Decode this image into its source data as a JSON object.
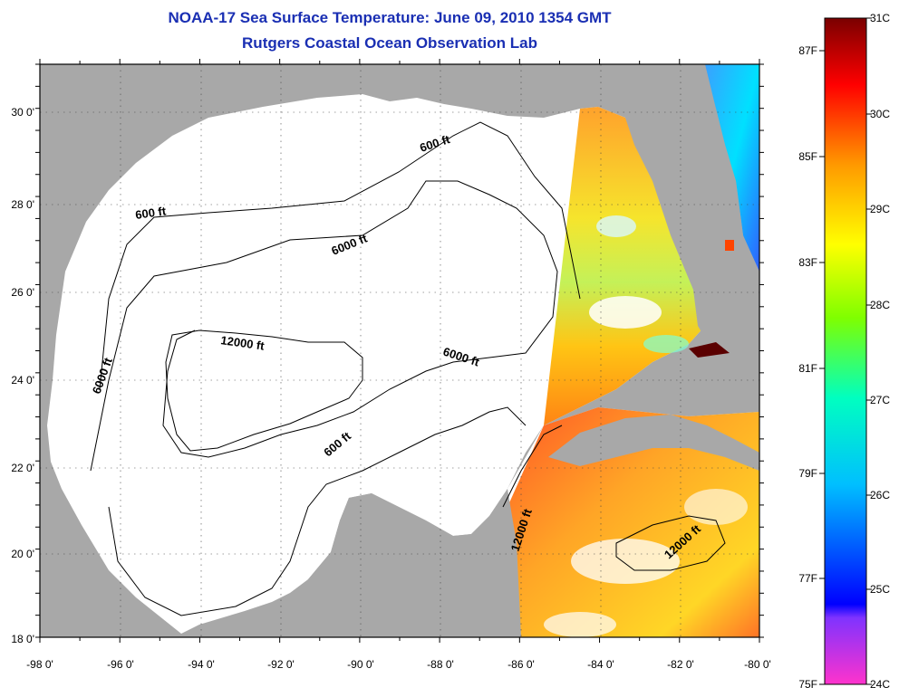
{
  "title": "NOAA-17 Sea Surface Temperature:  June 09, 2010 1354 GMT",
  "subtitle": "Rutgers Coastal Ocean Observation Lab",
  "axes": {
    "x_ticks": [
      "-98 0'",
      "-96 0'",
      "-94 0'",
      "-92 0'",
      "-90 0'",
      "-88 0'",
      "-86 0'",
      "-84 0'",
      "-82 0'",
      "-80 0'"
    ],
    "y_ticks": [
      "30 0'",
      "28 0'",
      "26 0'",
      "24 0'",
      "22 0'",
      "20 0'",
      "18 0'"
    ]
  },
  "contour_labels": {
    "c600_north": "600 ft",
    "c600_west": "600 ft",
    "c6000_north": "6000 ft",
    "c6000_west": "6000 ft",
    "c6000_east": "6000 ft",
    "c12000_center": "12000 ft",
    "c600_south": "600 ft",
    "c12000_southeast": "12000 ft",
    "c12000_caribbean": "12000 ft"
  },
  "colorbar": {
    "celsius": [
      "31C",
      "30C",
      "29C",
      "28C",
      "27C",
      "26C",
      "25C",
      "24C"
    ],
    "fahrenheit": [
      "87F",
      "85F",
      "83F",
      "81F",
      "79F",
      "77F",
      "75F"
    ]
  },
  "colors": {
    "land": "#a8a8a8",
    "title": "#1a2fb3",
    "warm": "#ff8a00",
    "hot": "#e8140e"
  }
}
